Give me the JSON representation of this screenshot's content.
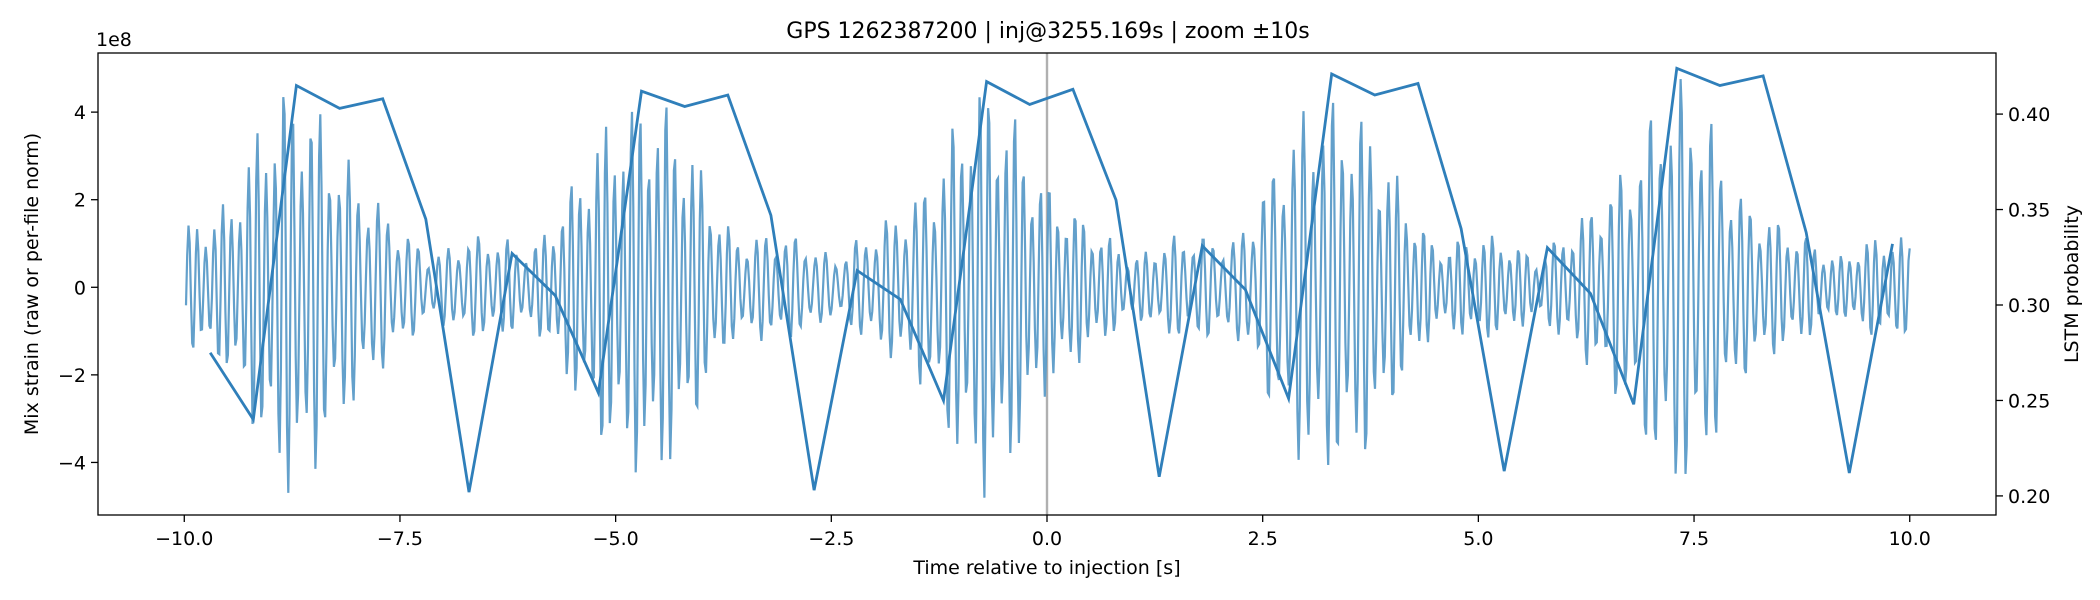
{
  "chart_data": {
    "type": "line",
    "title": "GPS 1262387200 | inj@3255.169s | zoom ±10s",
    "xlabel": "Time relative to injection [s]",
    "ylabel": "Mix strain (raw or per-file norm)",
    "y2label": "LSTM probability",
    "y_offset_label": "1e8",
    "xlim": [
      -11.0,
      11.0
    ],
    "ylim": [
      -5.2,
      5.35
    ],
    "y2lim": [
      0.19,
      0.432
    ],
    "x_ticks": [
      -10.0,
      -7.5,
      -5.0,
      -2.5,
      0.0,
      2.5,
      5.0,
      7.5,
      10.0
    ],
    "x_tick_labels": [
      "−10.0",
      "−7.5",
      "−5.0",
      "−2.5",
      "0.0",
      "2.5",
      "5.0",
      "7.5",
      "10.0"
    ],
    "y_ticks": [
      -4,
      -2,
      0,
      2,
      4
    ],
    "y_tick_labels": [
      "−4",
      "−2",
      "0",
      "2",
      "4"
    ],
    "y2_ticks": [
      0.2,
      0.25,
      0.3,
      0.35,
      0.4
    ],
    "y2_tick_labels": [
      "0.20",
      "0.25",
      "0.30",
      "0.35",
      "0.40"
    ],
    "injection_marker_x": 0.0,
    "strain_series": {
      "name": "Mix strain",
      "color": "#5b9bc8",
      "note": "dense oscillation sampled in units of 1e8; bursts peak near ±4.8 repeating every ~4 s",
      "x_start": -9.98,
      "x_end": 10.0,
      "samples": 1400,
      "burst_centers": [
        -8.7,
        -4.7,
        -0.7,
        3.3,
        7.3
      ],
      "burst_peak": 4.85,
      "baseline_amp": 1.2
    },
    "lstm_series": {
      "name": "LSTM probability",
      "color": "#2f7fba",
      "x": [
        -9.7,
        -9.2,
        -8.7,
        -8.2,
        -7.7,
        -7.2,
        -6.7,
        -6.2,
        -5.7,
        -5.2,
        -4.7,
        -4.2,
        -3.7,
        -3.2,
        -2.7,
        -2.2,
        -1.7,
        -1.2,
        -0.7,
        -0.2,
        0.3,
        0.8,
        1.3,
        1.8,
        2.3,
        2.8,
        3.3,
        3.8,
        4.3,
        4.8,
        5.3,
        5.8,
        6.3,
        6.8,
        7.3,
        7.8,
        8.3,
        8.8,
        9.3,
        9.8
      ],
      "y": [
        0.275,
        0.24,
        0.415,
        0.403,
        0.408,
        0.345,
        0.202,
        0.327,
        0.305,
        0.254,
        0.412,
        0.404,
        0.41,
        0.347,
        0.203,
        0.318,
        0.303,
        0.25,
        0.417,
        0.405,
        0.413,
        0.355,
        0.21,
        0.331,
        0.308,
        0.251,
        0.421,
        0.41,
        0.416,
        0.34,
        0.213,
        0.33,
        0.306,
        0.248,
        0.424,
        0.415,
        0.42,
        0.338,
        0.212,
        0.332
      ]
    }
  }
}
